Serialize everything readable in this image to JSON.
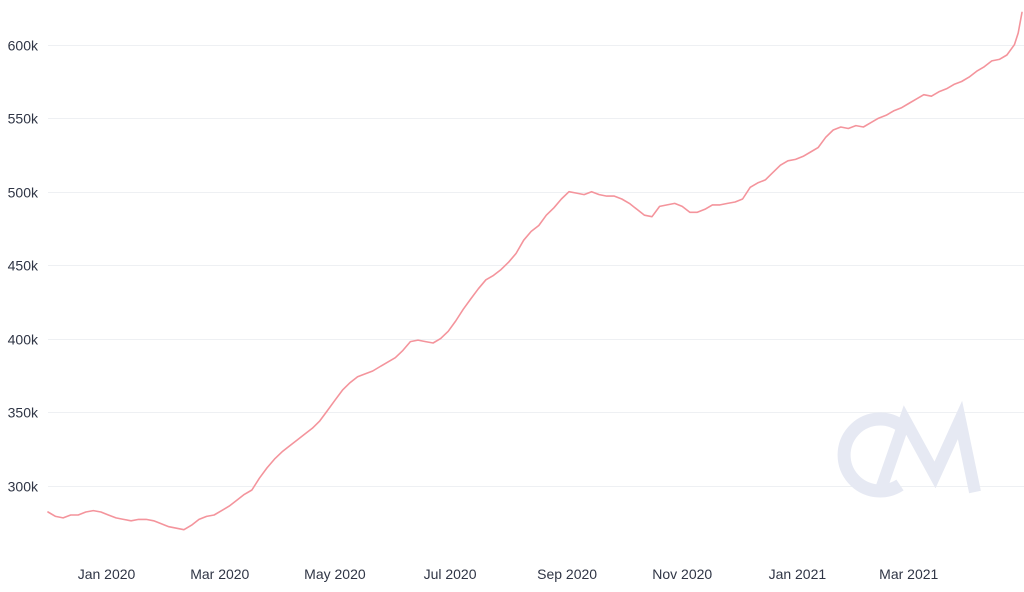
{
  "chart_data": {
    "type": "line",
    "title": "",
    "xlabel": "",
    "ylabel": "",
    "grid": true,
    "legend": "none",
    "colors": {
      "line": "#f4949c",
      "grid": "#eef0f3",
      "text": "#2f3545",
      "watermark": "#e6e9f3"
    },
    "xlim": [
      "2019-12-01",
      "2021-04-30"
    ],
    "ylim": [
      265000,
      625000
    ],
    "y_ticks": [
      {
        "value": 300000,
        "label": "300k"
      },
      {
        "value": 350000,
        "label": "350k"
      },
      {
        "value": 400000,
        "label": "400k"
      },
      {
        "value": 450000,
        "label": "450k"
      },
      {
        "value": 500000,
        "label": "500k"
      },
      {
        "value": 550000,
        "label": "550k"
      },
      {
        "value": 600000,
        "label": "600k"
      }
    ],
    "x_ticks": [
      {
        "date": "2020-01-01",
        "label": "Jan 2020"
      },
      {
        "date": "2020-03-01",
        "label": "Mar 2020"
      },
      {
        "date": "2020-05-01",
        "label": "May 2020"
      },
      {
        "date": "2020-07-01",
        "label": "Jul 2020"
      },
      {
        "date": "2020-09-01",
        "label": "Sep 2020"
      },
      {
        "date": "2020-11-01",
        "label": "Nov 2020"
      },
      {
        "date": "2021-01-01",
        "label": "Jan 2021"
      },
      {
        "date": "2021-03-01",
        "label": "Mar 2021"
      }
    ],
    "series": [
      {
        "points": [
          [
            "2019-12-01",
            282000
          ],
          [
            "2019-12-05",
            279000
          ],
          [
            "2019-12-09",
            278000
          ],
          [
            "2019-12-13",
            280000
          ],
          [
            "2019-12-17",
            280000
          ],
          [
            "2019-12-21",
            282000
          ],
          [
            "2019-12-25",
            283000
          ],
          [
            "2019-12-29",
            282000
          ],
          [
            "2020-01-02",
            280000
          ],
          [
            "2020-01-06",
            278000
          ],
          [
            "2020-01-10",
            277000
          ],
          [
            "2020-01-14",
            276000
          ],
          [
            "2020-01-18",
            277000
          ],
          [
            "2020-01-22",
            277000
          ],
          [
            "2020-01-26",
            276000
          ],
          [
            "2020-01-30",
            274000
          ],
          [
            "2020-02-03",
            272000
          ],
          [
            "2020-02-07",
            271000
          ],
          [
            "2020-02-11",
            270000
          ],
          [
            "2020-02-15",
            273000
          ],
          [
            "2020-02-19",
            277000
          ],
          [
            "2020-02-23",
            279000
          ],
          [
            "2020-02-27",
            280000
          ],
          [
            "2020-03-02",
            283000
          ],
          [
            "2020-03-06",
            286000
          ],
          [
            "2020-03-10",
            290000
          ],
          [
            "2020-03-14",
            294000
          ],
          [
            "2020-03-18",
            297000
          ],
          [
            "2020-03-22",
            305000
          ],
          [
            "2020-03-26",
            312000
          ],
          [
            "2020-03-30",
            318000
          ],
          [
            "2020-04-03",
            323000
          ],
          [
            "2020-04-07",
            327000
          ],
          [
            "2020-04-11",
            331000
          ],
          [
            "2020-04-15",
            335000
          ],
          [
            "2020-04-19",
            339000
          ],
          [
            "2020-04-23",
            344000
          ],
          [
            "2020-04-27",
            351000
          ],
          [
            "2020-05-01",
            358000
          ],
          [
            "2020-05-05",
            365000
          ],
          [
            "2020-05-09",
            370000
          ],
          [
            "2020-05-13",
            374000
          ],
          [
            "2020-05-17",
            376000
          ],
          [
            "2020-05-21",
            378000
          ],
          [
            "2020-05-25",
            381000
          ],
          [
            "2020-05-29",
            384000
          ],
          [
            "2020-06-02",
            387000
          ],
          [
            "2020-06-06",
            392000
          ],
          [
            "2020-06-10",
            398000
          ],
          [
            "2020-06-14",
            399000
          ],
          [
            "2020-06-18",
            398000
          ],
          [
            "2020-06-22",
            397000
          ],
          [
            "2020-06-26",
            400000
          ],
          [
            "2020-06-30",
            405000
          ],
          [
            "2020-07-04",
            412000
          ],
          [
            "2020-07-08",
            420000
          ],
          [
            "2020-07-12",
            427000
          ],
          [
            "2020-07-16",
            434000
          ],
          [
            "2020-07-20",
            440000
          ],
          [
            "2020-07-24",
            443000
          ],
          [
            "2020-07-28",
            447000
          ],
          [
            "2020-08-01",
            452000
          ],
          [
            "2020-08-05",
            458000
          ],
          [
            "2020-08-09",
            467000
          ],
          [
            "2020-08-13",
            473000
          ],
          [
            "2020-08-17",
            477000
          ],
          [
            "2020-08-21",
            484000
          ],
          [
            "2020-08-25",
            489000
          ],
          [
            "2020-08-29",
            495000
          ],
          [
            "2020-09-02",
            500000
          ],
          [
            "2020-09-06",
            499000
          ],
          [
            "2020-09-10",
            498000
          ],
          [
            "2020-09-14",
            500000
          ],
          [
            "2020-09-18",
            498000
          ],
          [
            "2020-09-22",
            497000
          ],
          [
            "2020-09-26",
            497000
          ],
          [
            "2020-09-30",
            495000
          ],
          [
            "2020-10-04",
            492000
          ],
          [
            "2020-10-08",
            488000
          ],
          [
            "2020-10-12",
            484000
          ],
          [
            "2020-10-16",
            483000
          ],
          [
            "2020-10-20",
            490000
          ],
          [
            "2020-10-24",
            491000
          ],
          [
            "2020-10-28",
            492000
          ],
          [
            "2020-11-01",
            490000
          ],
          [
            "2020-11-05",
            486000
          ],
          [
            "2020-11-09",
            486000
          ],
          [
            "2020-11-13",
            488000
          ],
          [
            "2020-11-17",
            491000
          ],
          [
            "2020-11-21",
            491000
          ],
          [
            "2020-11-25",
            492000
          ],
          [
            "2020-11-29",
            493000
          ],
          [
            "2020-12-03",
            495000
          ],
          [
            "2020-12-07",
            503000
          ],
          [
            "2020-12-11",
            506000
          ],
          [
            "2020-12-15",
            508000
          ],
          [
            "2020-12-19",
            513000
          ],
          [
            "2020-12-23",
            518000
          ],
          [
            "2020-12-27",
            521000
          ],
          [
            "2020-12-31",
            522000
          ],
          [
            "2021-01-04",
            524000
          ],
          [
            "2021-01-08",
            527000
          ],
          [
            "2021-01-12",
            530000
          ],
          [
            "2021-01-16",
            537000
          ],
          [
            "2021-01-20",
            542000
          ],
          [
            "2021-01-24",
            544000
          ],
          [
            "2021-01-28",
            543000
          ],
          [
            "2021-02-01",
            545000
          ],
          [
            "2021-02-05",
            544000
          ],
          [
            "2021-02-09",
            547000
          ],
          [
            "2021-02-13",
            550000
          ],
          [
            "2021-02-17",
            552000
          ],
          [
            "2021-02-21",
            555000
          ],
          [
            "2021-02-25",
            557000
          ],
          [
            "2021-03-01",
            560000
          ],
          [
            "2021-03-05",
            563000
          ],
          [
            "2021-03-09",
            566000
          ],
          [
            "2021-03-13",
            565000
          ],
          [
            "2021-03-17",
            568000
          ],
          [
            "2021-03-21",
            570000
          ],
          [
            "2021-03-25",
            573000
          ],
          [
            "2021-03-29",
            575000
          ],
          [
            "2021-04-02",
            578000
          ],
          [
            "2021-04-06",
            582000
          ],
          [
            "2021-04-10",
            585000
          ],
          [
            "2021-04-14",
            589000
          ],
          [
            "2021-04-18",
            590000
          ],
          [
            "2021-04-22",
            593000
          ],
          [
            "2021-04-26",
            600000
          ],
          [
            "2021-04-28",
            608000
          ],
          [
            "2021-04-30",
            622000
          ]
        ]
      }
    ],
    "watermark": "CM"
  }
}
